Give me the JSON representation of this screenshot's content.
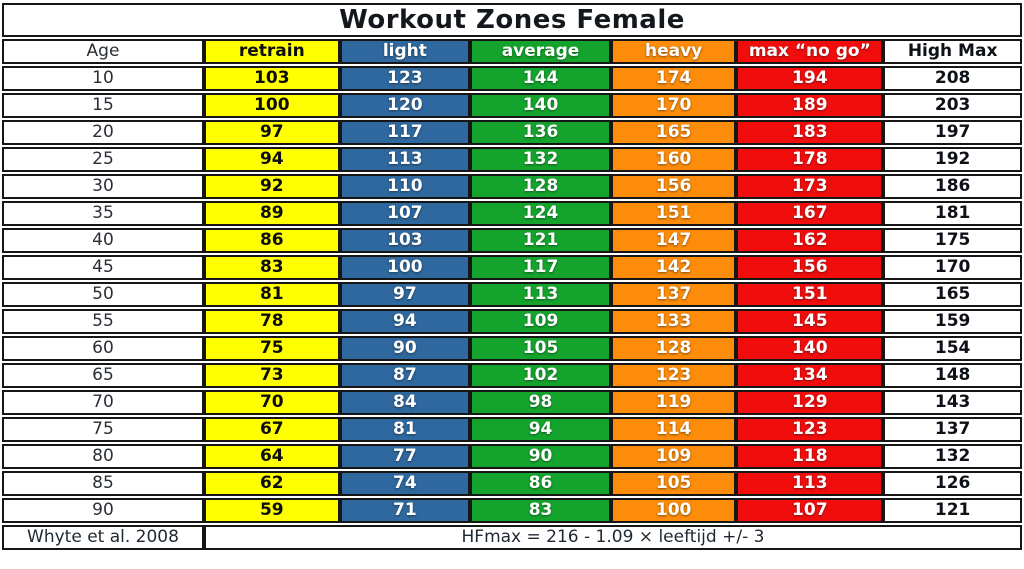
{
  "chart_data": {
    "type": "table",
    "title": "Workout Zones Female",
    "columns": [
      {
        "key": "age",
        "label": "Age",
        "bg": "#FFFFFF",
        "text": "#2a2f35"
      },
      {
        "key": "retrain",
        "label": "retrain",
        "bg": "#FFFF00",
        "text": "#0d0d0d"
      },
      {
        "key": "light",
        "label": "light",
        "bg": "#2F689E",
        "text": "#FFFFFF"
      },
      {
        "key": "average",
        "label": "average",
        "bg": "#14A42D",
        "text": "#FFFFFF"
      },
      {
        "key": "heavy",
        "label": "heavy",
        "bg": "#FC8C0A",
        "text": "#FFFFFF"
      },
      {
        "key": "max_no_go",
        "label": "max “no go”",
        "bg": "#F20D0D",
        "text": "#FFFFFF"
      },
      {
        "key": "high_max",
        "label": "High Max",
        "bg": "#FFFFFF",
        "text": "#0e1218"
      }
    ],
    "rows": [
      [
        10,
        103,
        123,
        144,
        174,
        194,
        208
      ],
      [
        15,
        100,
        120,
        140,
        170,
        189,
        203
      ],
      [
        20,
        97,
        117,
        136,
        165,
        183,
        197
      ],
      [
        25,
        94,
        113,
        132,
        160,
        178,
        192
      ],
      [
        30,
        92,
        110,
        128,
        156,
        173,
        186
      ],
      [
        35,
        89,
        107,
        124,
        151,
        167,
        181
      ],
      [
        40,
        86,
        103,
        121,
        147,
        162,
        175
      ],
      [
        45,
        83,
        100,
        117,
        142,
        156,
        170
      ],
      [
        50,
        81,
        97,
        113,
        137,
        151,
        165
      ],
      [
        55,
        78,
        94,
        109,
        133,
        145,
        159
      ],
      [
        60,
        75,
        90,
        105,
        128,
        140,
        154
      ],
      [
        65,
        73,
        87,
        102,
        123,
        134,
        148
      ],
      [
        70,
        70,
        84,
        98,
        119,
        129,
        143
      ],
      [
        75,
        67,
        81,
        94,
        114,
        123,
        137
      ],
      [
        80,
        64,
        77,
        90,
        109,
        118,
        132
      ],
      [
        85,
        62,
        74,
        86,
        105,
        113,
        126
      ],
      [
        90,
        59,
        71,
        83,
        100,
        107,
        121
      ]
    ],
    "footer_source": "Whyte et al. 2008",
    "footer_formula": "HFmax = 216 - 1.09 × leeftijd +/- 3",
    "layout": {
      "grid_border_color": "#161616",
      "background_color": "#FFFFFF",
      "title_color": "#14181d"
    }
  }
}
